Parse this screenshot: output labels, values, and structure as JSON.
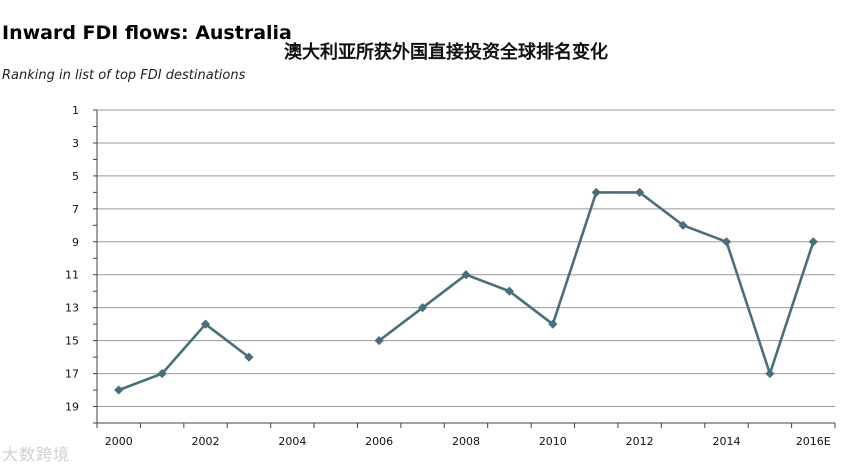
{
  "titles": {
    "main": "Inward FDI flows: Australia",
    "sub": "Ranking in list of top FDI destinations",
    "chinese": "澳大利亚所获外国直接投资全球排名变化"
  },
  "watermark": "大数跨境",
  "chart_data": {
    "type": "line",
    "title": "Inward FDI flows: Australia",
    "subtitle": "Ranking in list of top FDI destinations",
    "xlabel": "",
    "ylabel": "",
    "x_ticks": [
      "2000",
      "2002",
      "2004",
      "2006",
      "2008",
      "2010",
      "2012",
      "2014",
      "2016E"
    ],
    "y_ticks": [
      1,
      3,
      5,
      7,
      9,
      11,
      13,
      15,
      17,
      19
    ],
    "ylim": [
      1,
      20
    ],
    "y_inverted": true,
    "grid": "horizontal",
    "color": "#4a6f7a",
    "series": [
      {
        "segments": [
          [
            {
              "x": "2000",
              "y": 18
            },
            {
              "x": "2001",
              "y": 17
            },
            {
              "x": "2002",
              "y": 14
            },
            {
              "x": "2003",
              "y": 16
            }
          ],
          [
            {
              "x": "2006",
              "y": 15
            },
            {
              "x": "2007",
              "y": 13
            },
            {
              "x": "2008",
              "y": 11
            },
            {
              "x": "2009",
              "y": 12
            },
            {
              "x": "2010",
              "y": 14
            },
            {
              "x": "2011",
              "y": 6
            },
            {
              "x": "2012",
              "y": 6
            },
            {
              "x": "2013",
              "y": 8
            },
            {
              "x": "2014",
              "y": 9
            },
            {
              "x": "2015",
              "y": 17
            },
            {
              "x": "2016E",
              "y": 9
            }
          ]
        ]
      }
    ]
  }
}
